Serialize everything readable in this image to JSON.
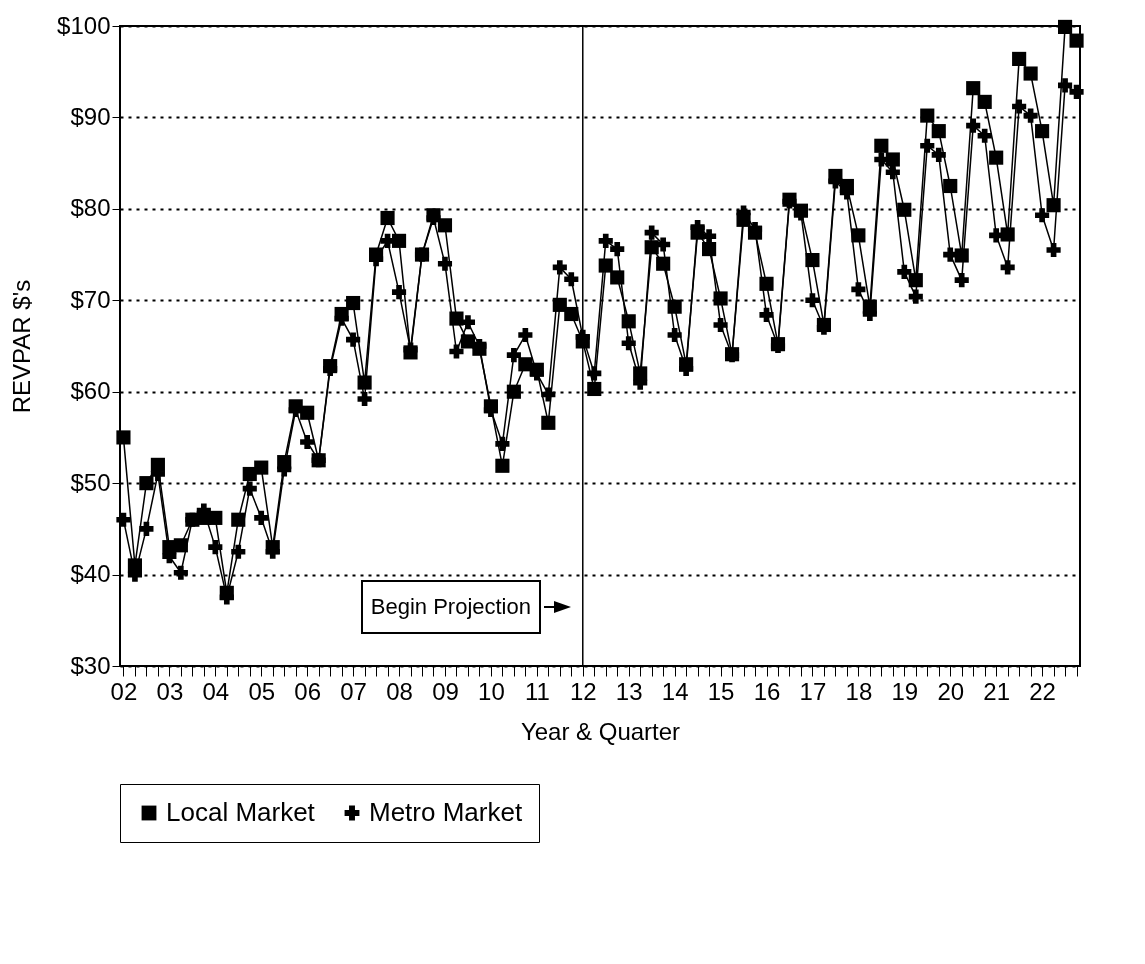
{
  "chart_data": {
    "type": "line",
    "xlabel": "Year & Quarter",
    "ylabel": "REVPAR $'s",
    "categories": [
      "02",
      null,
      null,
      null,
      "03",
      null,
      null,
      null,
      "04",
      null,
      null,
      null,
      "05",
      null,
      null,
      null,
      "06",
      null,
      null,
      null,
      "07",
      null,
      null,
      null,
      "08",
      null,
      null,
      null,
      "09",
      null,
      null,
      null,
      "10",
      null,
      null,
      null,
      "11",
      null,
      null,
      null,
      "12",
      null,
      null,
      null,
      "13",
      null,
      null,
      null,
      "14",
      null,
      null,
      null,
      "15",
      null,
      null,
      null,
      "16",
      null,
      null,
      null,
      "17",
      null,
      null,
      null,
      "18",
      null,
      null,
      null,
      "19",
      null,
      null,
      null,
      "20",
      null,
      null,
      null,
      "21",
      null,
      null,
      null,
      "22",
      null,
      null,
      null
    ],
    "series": [
      {
        "name": "Local Market",
        "color": "#000000",
        "marker": "square",
        "values": [
          55,
          41,
          50,
          52,
          43,
          43.2,
          46,
          46.2,
          46.2,
          38,
          46,
          51,
          51.7,
          43,
          52.3,
          58.4,
          57.7,
          52.5,
          62.8,
          68.5,
          69.7,
          61,
          75,
          79,
          76.5,
          64.3,
          75,
          79.3,
          78.2,
          68,
          65.5,
          64.7,
          58.4,
          51.9,
          60,
          63,
          62.4,
          56.6,
          69.5,
          68.5,
          65.5,
          60.3,
          73.8,
          72.5,
          67.7,
          62,
          75.8,
          74,
          69.3,
          63,
          77.4,
          75.6,
          70.2,
          64.1,
          78.8,
          77.4,
          71.8,
          65.2,
          81,
          79.8,
          74.4,
          67.3,
          83.6,
          82.5,
          77.1,
          69.3,
          86.9,
          85.4,
          79.9,
          72.2,
          90.2,
          88.5,
          82.5,
          74.9,
          93.2,
          91.7,
          85.6,
          77.2,
          96.4,
          94.8,
          88.5,
          80.4,
          99.9,
          98.4
        ]
      },
      {
        "name": "Metro Market",
        "color": "#000000",
        "marker": "cross",
        "values": [
          46,
          40,
          45,
          51,
          42,
          40.2,
          46,
          47,
          43,
          37.5,
          42.5,
          49.4,
          46.2,
          42.5,
          51.5,
          58,
          54.5,
          52.5,
          62.5,
          68,
          65.7,
          59.2,
          74.5,
          76.5,
          70.9,
          64.6,
          75,
          79,
          74,
          64.4,
          67.6,
          65,
          58,
          54.3,
          64,
          66.2,
          62,
          59.7,
          73.6,
          72.3,
          66,
          62,
          76.5,
          75.6,
          65.3,
          61,
          77.4,
          76.1,
          66.2,
          62.5,
          78,
          77,
          67.3,
          64,
          79.6,
          77.8,
          68.4,
          65,
          80.8,
          79.5,
          70,
          67,
          83,
          81.8,
          71.2,
          68.5,
          85.4,
          84,
          73.1,
          70.4,
          86.9,
          85.9,
          75,
          72.2,
          89.1,
          88,
          77.1,
          73.6,
          91.2,
          90.2,
          79.3,
          75.5,
          93.5,
          92.8
        ]
      }
    ],
    "ylim": [
      30,
      100
    ],
    "yticks": [
      {
        "value": 30,
        "label": "$30"
      },
      {
        "value": 40,
        "label": "$40"
      },
      {
        "value": 50,
        "label": "$50"
      },
      {
        "value": 60,
        "label": "$60"
      },
      {
        "value": 70,
        "label": "$70"
      },
      {
        "value": 80,
        "label": "$80"
      },
      {
        "value": 90,
        "label": "$90"
      },
      {
        "value": 100,
        "label": "$100"
      }
    ],
    "ref_lines": [
      {
        "axis": "x",
        "value": "12",
        "label": "Begin Projection",
        "color": "#000000"
      }
    ],
    "grid": "y",
    "legend": "bottom",
    "line_style": "solid"
  }
}
